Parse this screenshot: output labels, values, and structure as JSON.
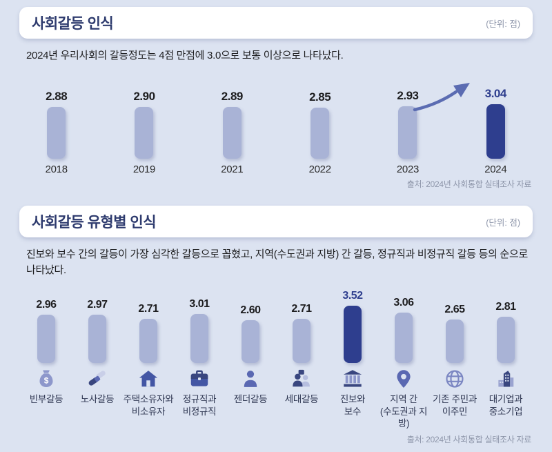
{
  "section1": {
    "title": "사회갈등 인식",
    "unit": "(단위: 점)",
    "subtitle": "2024년 우리사회의 갈등정도는 4점 만점에 3.0으로 보통 이상으로 나타났다.",
    "source": "출처: 2024년 사회통합 실태조사 자료"
  },
  "section2": {
    "title": "사회갈등 유형별 인식",
    "unit": "(단위: 점)",
    "subtitle": "진보와 보수 간의 갈등이 가장 심각한 갈등으로 꼽혔고, 지역(수도권과 지방) 간 갈등, 정규직과 비정규직 갈등 등의 순으로 나타났다.",
    "source": "출처: 2024년 사회통합 실태조사 자료"
  },
  "colors": {
    "background": "#dce3f1",
    "bar_light": "#a9b3d6",
    "bar_highlight": "#2e3e8e",
    "title_navy": "#2e3b6e",
    "value_text": "#1d1d1f",
    "value_highlight": "#2e3e8e",
    "muted_text": "#8e96aa",
    "arrow": "#5b6cb2",
    "icon_dark": "#39467f",
    "icon_mid": "#5a68b2",
    "icon_light": "#8d97cb"
  },
  "chart_data": [
    {
      "type": "bar",
      "title": "사회갈등 인식 (연도별)",
      "categories": [
        "2018",
        "2019",
        "2021",
        "2022",
        "2023",
        "2024"
      ],
      "values": [
        2.88,
        2.9,
        2.89,
        2.85,
        2.93,
        3.04
      ],
      "value_labels": [
        "2.88",
        "2.90",
        "2.89",
        "2.85",
        "2.93",
        "3.04"
      ],
      "highlight_index": 5,
      "ylim": [
        0,
        4
      ],
      "unit": "점",
      "grid": false,
      "legend": "none",
      "annotations": [
        "상승 화살표 (2023→2024)"
      ]
    },
    {
      "type": "bar",
      "title": "사회갈등 유형별 인식",
      "categories": [
        "빈부갈등",
        "노사갈등",
        "주택소유자와 비소유자",
        "정규직과 비정규직",
        "젠더갈등",
        "세대갈등",
        "진보와 보수",
        "지역 간 (수도권과 지방)",
        "기존 주민과 이주민",
        "대기업과 중소기업"
      ],
      "label_lines": [
        [
          "빈부갈등"
        ],
        [
          "노사갈등"
        ],
        [
          "주택소유자와",
          "비소유자"
        ],
        [
          "정규직과",
          "비정규직"
        ],
        [
          "젠더갈등"
        ],
        [
          "세대갈등"
        ],
        [
          "진보와",
          "보수"
        ],
        [
          "지역 간",
          "(수도권과 지방)"
        ],
        [
          "기존 주민과",
          "이주민"
        ],
        [
          "대기업과",
          "중소기업"
        ]
      ],
      "values": [
        2.96,
        2.97,
        2.71,
        3.01,
        2.6,
        2.71,
        3.52,
        3.06,
        2.65,
        2.81
      ],
      "value_labels": [
        "2.96",
        "2.97",
        "2.71",
        "3.01",
        "2.60",
        "2.71",
        "3.52",
        "3.06",
        "2.65",
        "2.81"
      ],
      "icons": [
        "money-bag-icon",
        "handshake-icon",
        "house-icon",
        "briefcase-icon",
        "person-icon",
        "people-icon",
        "bank-icon",
        "map-pin-icon",
        "globe-icon",
        "building-icon"
      ],
      "highlight_index": 6,
      "ylim": [
        0,
        4
      ],
      "unit": "점",
      "grid": false,
      "legend": "none"
    }
  ]
}
